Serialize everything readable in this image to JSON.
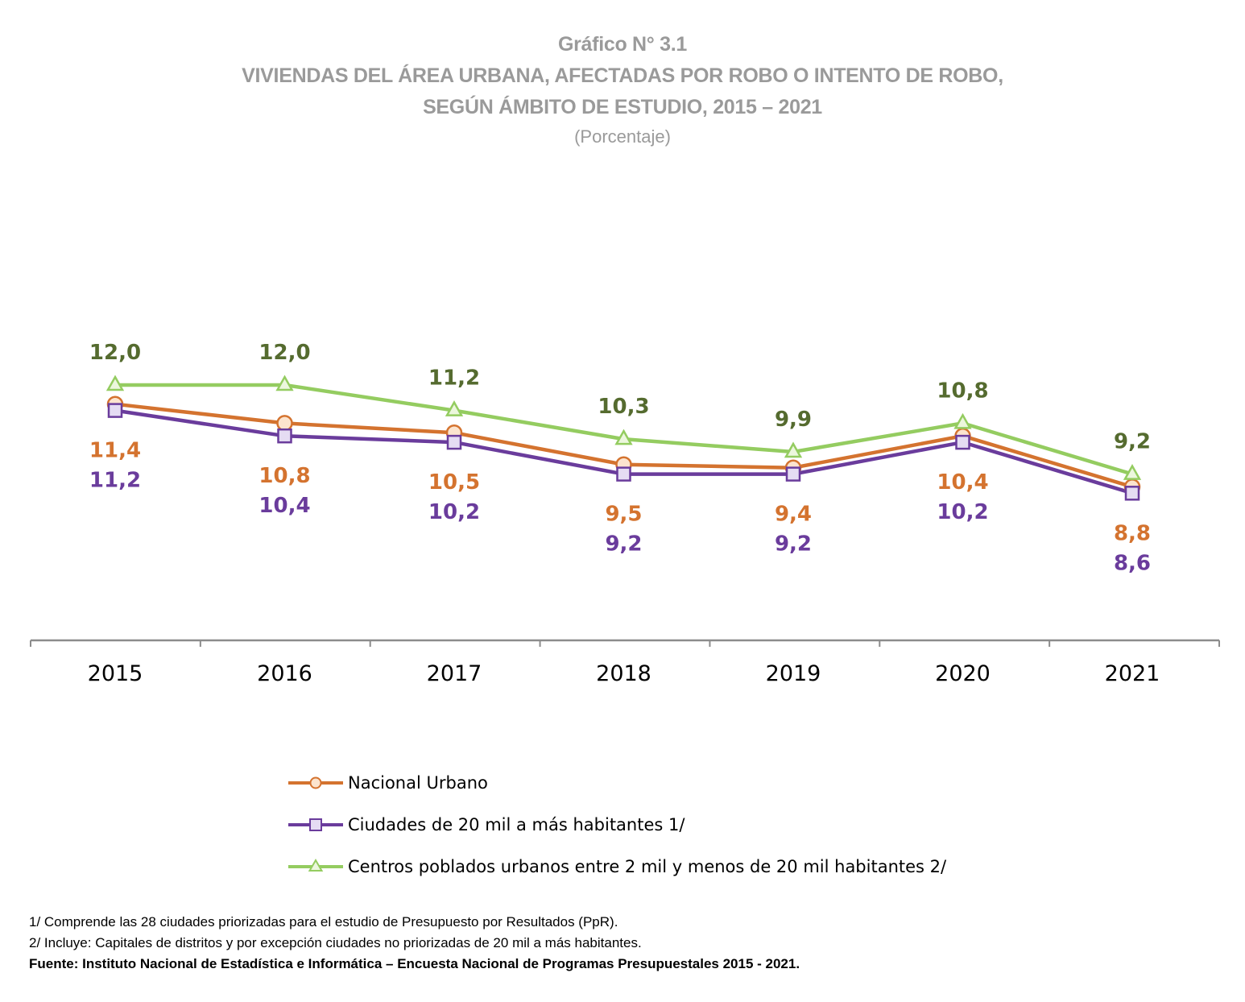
{
  "header": {
    "title_line1": "Gráfico N° 3.1",
    "title_line2": "VIVIENDAS DEL ÁREA URBANA, AFECTADAS POR ROBO O INTENTO DE ROBO,",
    "title_line3": "SEGÚN ÁMBITO DE ESTUDIO, 2015 – 2021",
    "unit": "(Porcentaje)"
  },
  "chart_data": {
    "type": "line",
    "categories": [
      "2015",
      "2016",
      "2017",
      "2018",
      "2019",
      "2020",
      "2021"
    ],
    "series": [
      {
        "name": "Nacional Urbano",
        "values": [
          11.4,
          10.8,
          10.5,
          9.5,
          9.4,
          10.4,
          8.8
        ],
        "labels": [
          "11,4",
          "10,8",
          "10,5",
          "9,5",
          "9,4",
          "10,4",
          "8,8"
        ],
        "color": "#D4732F",
        "marker": "circle"
      },
      {
        "name": "Ciudades de 20 mil a más habitantes 1/",
        "values": [
          11.2,
          10.4,
          10.2,
          9.2,
          9.2,
          10.2,
          8.6
        ],
        "labels": [
          "11,2",
          "10,4",
          "10,2",
          "9,2",
          "9,2",
          "10,2",
          "8,6"
        ],
        "color": "#6A3C9C",
        "marker": "square"
      },
      {
        "name": "Centros poblados urbanos entre 2 mil y menos de 20 mil habitantes 2/",
        "values": [
          12.0,
          12.0,
          11.2,
          10.3,
          9.9,
          10.8,
          9.2
        ],
        "labels": [
          "12,0",
          "12,0",
          "11,2",
          "10,3",
          "9,9",
          "10,8",
          "9,2"
        ],
        "color": "#94CC60",
        "label_color": "#556B2F",
        "marker": "triangle"
      }
    ],
    "legend_position": "bottom",
    "grid": false
  },
  "footnotes": {
    "note1": "1/ Comprende las 28 ciudades priorizadas para el estudio de Presupuesto por Resultados (PpR).",
    "note2": "2/ Incluye: Capitales de distritos y por excepción ciudades no priorizadas de 20 mil a más habitantes.",
    "source": "Fuente: Instituto Nacional de Estadística e Informática – Encuesta Nacional de Programas Presupuestales 2015 - 2021."
  }
}
